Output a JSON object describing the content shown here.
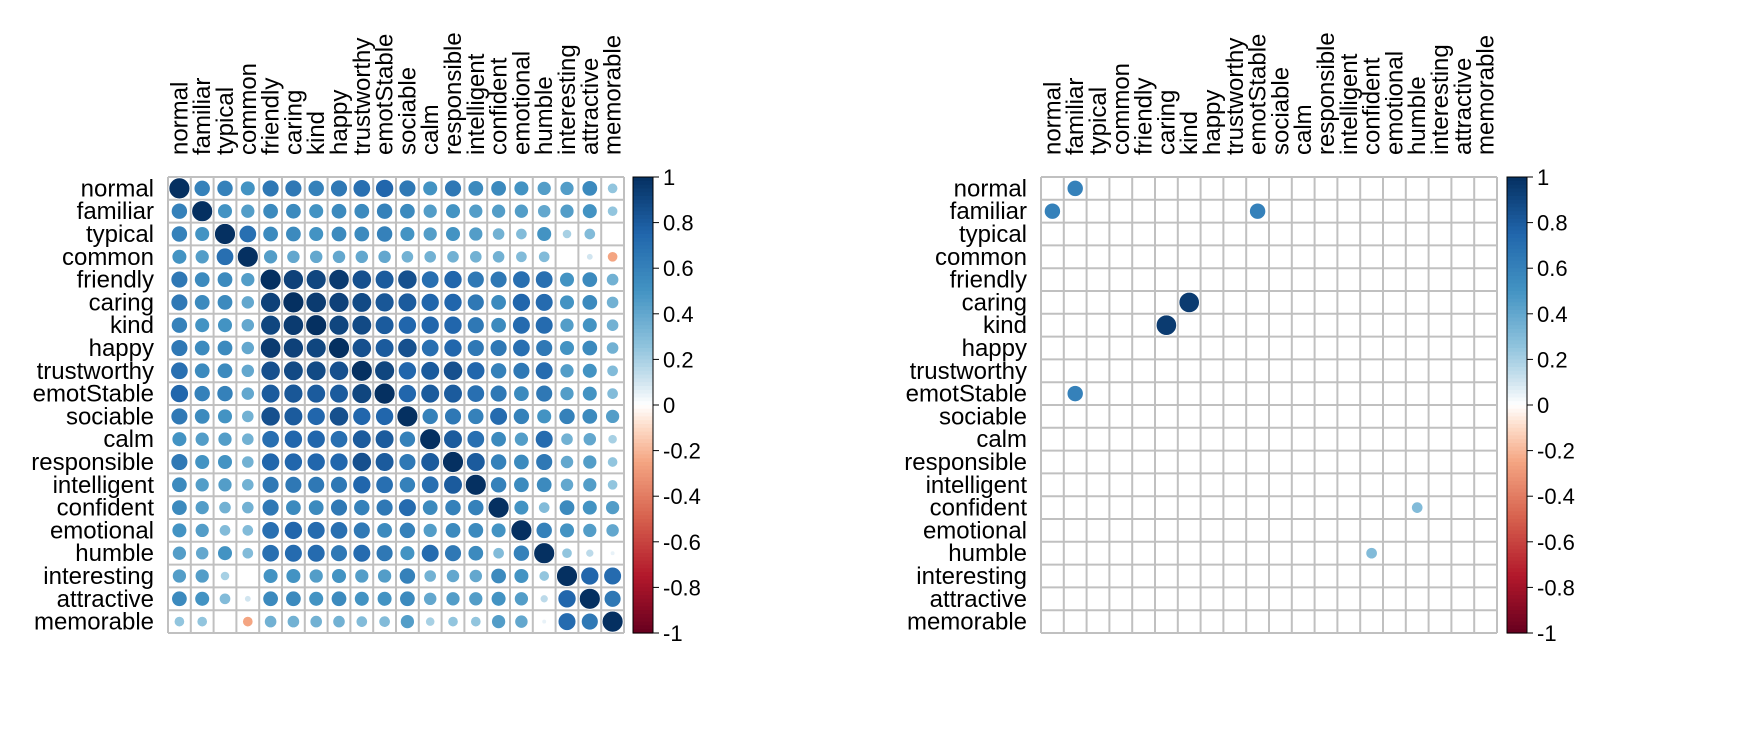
{
  "chart_data": [
    {
      "type": "heatmap",
      "style": "circle-correlation-matrix",
      "variables": [
        "normal",
        "familiar",
        "typical",
        "common",
        "friendly",
        "caring",
        "kind",
        "happy",
        "trustworthy",
        "emotStable",
        "sociable",
        "calm",
        "responsible",
        "intelligent",
        "confident",
        "emotional",
        "humble",
        "interesting",
        "attractive",
        "memorable"
      ],
      "matrix": [
        [
          1.0,
          0.6,
          0.6,
          0.5,
          0.65,
          0.65,
          0.6,
          0.65,
          0.7,
          0.75,
          0.65,
          0.5,
          0.65,
          0.55,
          0.55,
          0.5,
          0.45,
          0.45,
          0.55,
          0.25
        ],
        [
          0.6,
          1.0,
          0.5,
          0.45,
          0.55,
          0.55,
          0.5,
          0.55,
          0.55,
          0.6,
          0.55,
          0.45,
          0.5,
          0.45,
          0.45,
          0.45,
          0.4,
          0.45,
          0.5,
          0.25
        ],
        [
          0.6,
          0.5,
          1.0,
          0.7,
          0.55,
          0.55,
          0.5,
          0.55,
          0.55,
          0.6,
          0.5,
          0.45,
          0.5,
          0.45,
          0.35,
          0.3,
          0.5,
          0.2,
          0.3,
          0.0
        ],
        [
          0.5,
          0.45,
          0.7,
          1.0,
          0.45,
          0.4,
          0.4,
          0.4,
          0.4,
          0.4,
          0.35,
          0.35,
          0.35,
          0.35,
          0.35,
          0.3,
          0.3,
          0.0,
          0.1,
          -0.25
        ],
        [
          0.65,
          0.55,
          0.55,
          0.45,
          1.0,
          0.92,
          0.9,
          0.95,
          0.85,
          0.8,
          0.85,
          0.7,
          0.75,
          0.65,
          0.65,
          0.7,
          0.7,
          0.5,
          0.55,
          0.35
        ],
        [
          0.65,
          0.55,
          0.55,
          0.4,
          0.92,
          1.0,
          0.95,
          0.92,
          0.88,
          0.82,
          0.8,
          0.75,
          0.75,
          0.65,
          0.55,
          0.75,
          0.72,
          0.5,
          0.55,
          0.35
        ],
        [
          0.6,
          0.5,
          0.5,
          0.4,
          0.9,
          0.95,
          1.0,
          0.9,
          0.88,
          0.8,
          0.75,
          0.75,
          0.75,
          0.65,
          0.55,
          0.72,
          0.72,
          0.45,
          0.5,
          0.35
        ],
        [
          0.65,
          0.55,
          0.55,
          0.4,
          0.95,
          0.92,
          0.9,
          1.0,
          0.85,
          0.8,
          0.85,
          0.7,
          0.75,
          0.65,
          0.65,
          0.7,
          0.65,
          0.5,
          0.55,
          0.35
        ],
        [
          0.7,
          0.55,
          0.55,
          0.4,
          0.85,
          0.88,
          0.88,
          0.85,
          1.0,
          0.9,
          0.75,
          0.8,
          0.85,
          0.75,
          0.6,
          0.65,
          0.72,
          0.45,
          0.5,
          0.3
        ],
        [
          0.75,
          0.6,
          0.6,
          0.4,
          0.8,
          0.82,
          0.8,
          0.8,
          0.9,
          1.0,
          0.75,
          0.8,
          0.8,
          0.7,
          0.65,
          0.55,
          0.65,
          0.45,
          0.5,
          0.3
        ],
        [
          0.65,
          0.55,
          0.5,
          0.35,
          0.85,
          0.8,
          0.75,
          0.85,
          0.75,
          0.75,
          1.0,
          0.6,
          0.65,
          0.6,
          0.72,
          0.6,
          0.5,
          0.6,
          0.55,
          0.45
        ],
        [
          0.5,
          0.45,
          0.45,
          0.35,
          0.7,
          0.75,
          0.75,
          0.7,
          0.8,
          0.8,
          0.6,
          1.0,
          0.8,
          0.7,
          0.55,
          0.45,
          0.72,
          0.35,
          0.4,
          0.2
        ],
        [
          0.65,
          0.5,
          0.5,
          0.35,
          0.75,
          0.75,
          0.75,
          0.75,
          0.85,
          0.8,
          0.65,
          0.8,
          1.0,
          0.8,
          0.6,
          0.55,
          0.65,
          0.4,
          0.45,
          0.25
        ],
        [
          0.55,
          0.45,
          0.45,
          0.35,
          0.65,
          0.65,
          0.65,
          0.65,
          0.75,
          0.7,
          0.6,
          0.7,
          0.8,
          1.0,
          0.6,
          0.55,
          0.55,
          0.4,
          0.45,
          0.25
        ],
        [
          0.55,
          0.45,
          0.35,
          0.35,
          0.65,
          0.55,
          0.55,
          0.65,
          0.6,
          0.65,
          0.72,
          0.55,
          0.6,
          0.6,
          1.0,
          0.5,
          0.3,
          0.55,
          0.5,
          0.45
        ],
        [
          0.5,
          0.45,
          0.3,
          0.3,
          0.7,
          0.75,
          0.72,
          0.7,
          0.65,
          0.55,
          0.6,
          0.45,
          0.55,
          0.55,
          0.5,
          1.0,
          0.6,
          0.5,
          0.45,
          0.4
        ],
        [
          0.45,
          0.4,
          0.5,
          0.3,
          0.7,
          0.72,
          0.72,
          0.65,
          0.72,
          0.65,
          0.5,
          0.72,
          0.65,
          0.55,
          0.3,
          0.6,
          1.0,
          0.25,
          0.15,
          0.05
        ],
        [
          0.45,
          0.45,
          0.2,
          0.0,
          0.5,
          0.5,
          0.45,
          0.5,
          0.45,
          0.45,
          0.6,
          0.35,
          0.4,
          0.4,
          0.55,
          0.5,
          0.25,
          1.0,
          0.75,
          0.72
        ],
        [
          0.55,
          0.5,
          0.3,
          0.1,
          0.55,
          0.55,
          0.5,
          0.55,
          0.5,
          0.5,
          0.55,
          0.4,
          0.45,
          0.45,
          0.5,
          0.45,
          0.15,
          0.75,
          1.0,
          0.65
        ],
        [
          0.25,
          0.25,
          0.0,
          -0.25,
          0.35,
          0.35,
          0.35,
          0.35,
          0.3,
          0.3,
          0.45,
          0.2,
          0.25,
          0.25,
          0.45,
          0.4,
          0.05,
          0.72,
          0.65,
          1.0
        ]
      ],
      "colorbar": {
        "ticks": [
          "1",
          "0.8",
          "0.6",
          "0.4",
          "0.2",
          "0",
          "-0.2",
          "-0.4",
          "-0.6",
          "-0.8",
          "-1"
        ],
        "range": [
          -1,
          1
        ]
      }
    },
    {
      "type": "heatmap",
      "style": "circle-correlation-matrix",
      "variables": [
        "normal",
        "familiar",
        "typical",
        "common",
        "friendly",
        "caring",
        "kind",
        "happy",
        "trustworthy",
        "emotStable",
        "sociable",
        "calm",
        "responsible",
        "intelligent",
        "confident",
        "emotional",
        "humble",
        "interesting",
        "attractive",
        "memorable"
      ],
      "cells": [
        {
          "row": "normal",
          "col": "familiar",
          "value": 0.6
        },
        {
          "row": "familiar",
          "col": "normal",
          "value": 0.6
        },
        {
          "row": "familiar",
          "col": "emotStable",
          "value": 0.6
        },
        {
          "row": "caring",
          "col": "kind",
          "value": 0.95
        },
        {
          "row": "kind",
          "col": "caring",
          "value": 0.95
        },
        {
          "row": "emotStable",
          "col": "familiar",
          "value": 0.6
        },
        {
          "row": "confident",
          "col": "humble",
          "value": 0.3
        },
        {
          "row": "humble",
          "col": "confident",
          "value": 0.3
        }
      ],
      "colorbar": {
        "ticks": [
          "1",
          "0.8",
          "0.6",
          "0.4",
          "0.2",
          "0",
          "-0.2",
          "-0.4",
          "-0.6",
          "-0.8",
          "-1"
        ],
        "range": [
          -1,
          1
        ]
      }
    }
  ]
}
